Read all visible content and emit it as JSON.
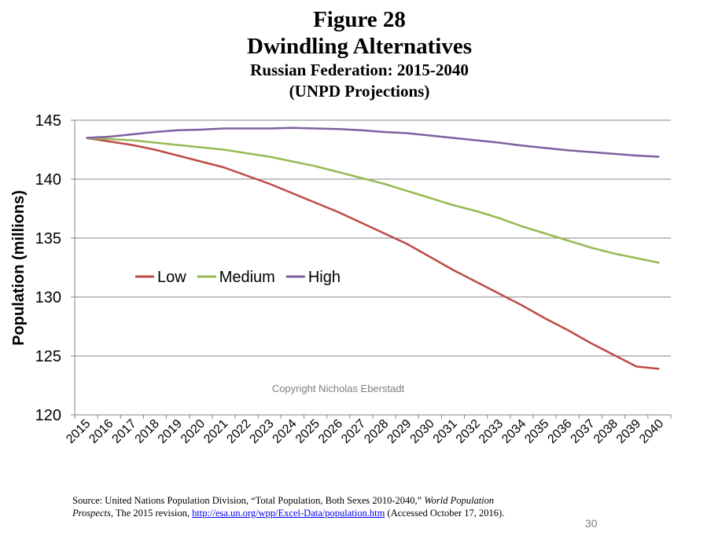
{
  "figure": {
    "label": "Figure 28",
    "title": "Dwindling Alternatives",
    "subtitle": "Russian Federation: 2015-2040",
    "subtitle2": "(UNPD Projections)"
  },
  "chart_data": {
    "type": "line",
    "title": "Dwindling Alternatives",
    "xlabel": "",
    "ylabel": "Population (millions)",
    "ylim": [
      120,
      145
    ],
    "yticks": [
      120,
      125,
      130,
      135,
      140,
      145
    ],
    "grid": true,
    "legend_position": "middle-left",
    "categories": [
      "2015",
      "2016",
      "2017",
      "2018",
      "2019",
      "2020",
      "2021",
      "2022",
      "2023",
      "2024",
      "2025",
      "2026",
      "2027",
      "2028",
      "2029",
      "2030",
      "2031",
      "2032",
      "2033",
      "2034",
      "2035",
      "2036",
      "2037",
      "2038",
      "2039",
      "2040"
    ],
    "series": [
      {
        "name": "Low",
        "color": "#be4b48",
        "values": [
          143.5,
          143.2,
          142.9,
          142.5,
          142.0,
          141.5,
          141.0,
          140.3,
          139.6,
          138.8,
          138.0,
          137.2,
          136.3,
          135.4,
          134.5,
          133.4,
          132.3,
          131.3,
          130.3,
          129.3,
          128.2,
          127.2,
          126.1,
          125.1,
          124.1,
          123.9
        ]
      },
      {
        "name": "Medium",
        "color": "#98b954",
        "values": [
          143.5,
          143.4,
          143.3,
          143.1,
          142.9,
          142.7,
          142.5,
          142.2,
          141.9,
          141.5,
          141.1,
          140.6,
          140.1,
          139.6,
          139.0,
          138.4,
          137.8,
          137.3,
          136.7,
          136.0,
          135.4,
          134.8,
          134.2,
          133.7,
          133.3,
          132.9
        ]
      },
      {
        "name": "High",
        "color": "#7d60a0",
        "values": [
          143.5,
          143.6,
          143.8,
          144.0,
          144.15,
          144.2,
          144.3,
          144.3,
          144.3,
          144.35,
          144.3,
          144.25,
          144.15,
          144.0,
          143.9,
          143.7,
          143.5,
          143.3,
          143.1,
          142.85,
          142.65,
          142.45,
          142.3,
          142.15,
          142.0,
          141.9
        ]
      }
    ],
    "annotation": "Copyright Nicholas Eberstadt"
  },
  "footer": {
    "source_prefix": "Source: United Nations Population Division, “Total Population, Both Sexes 2010-2040,” ",
    "source_italic": "World Population Prospects",
    "source_mid": ", The 2015 revision, ",
    "source_link": "http://esa.un.org/wpp/Excel-Data/population.htm",
    "source_suffix": " (Accessed October 17, 2016).",
    "page_number": "30"
  }
}
